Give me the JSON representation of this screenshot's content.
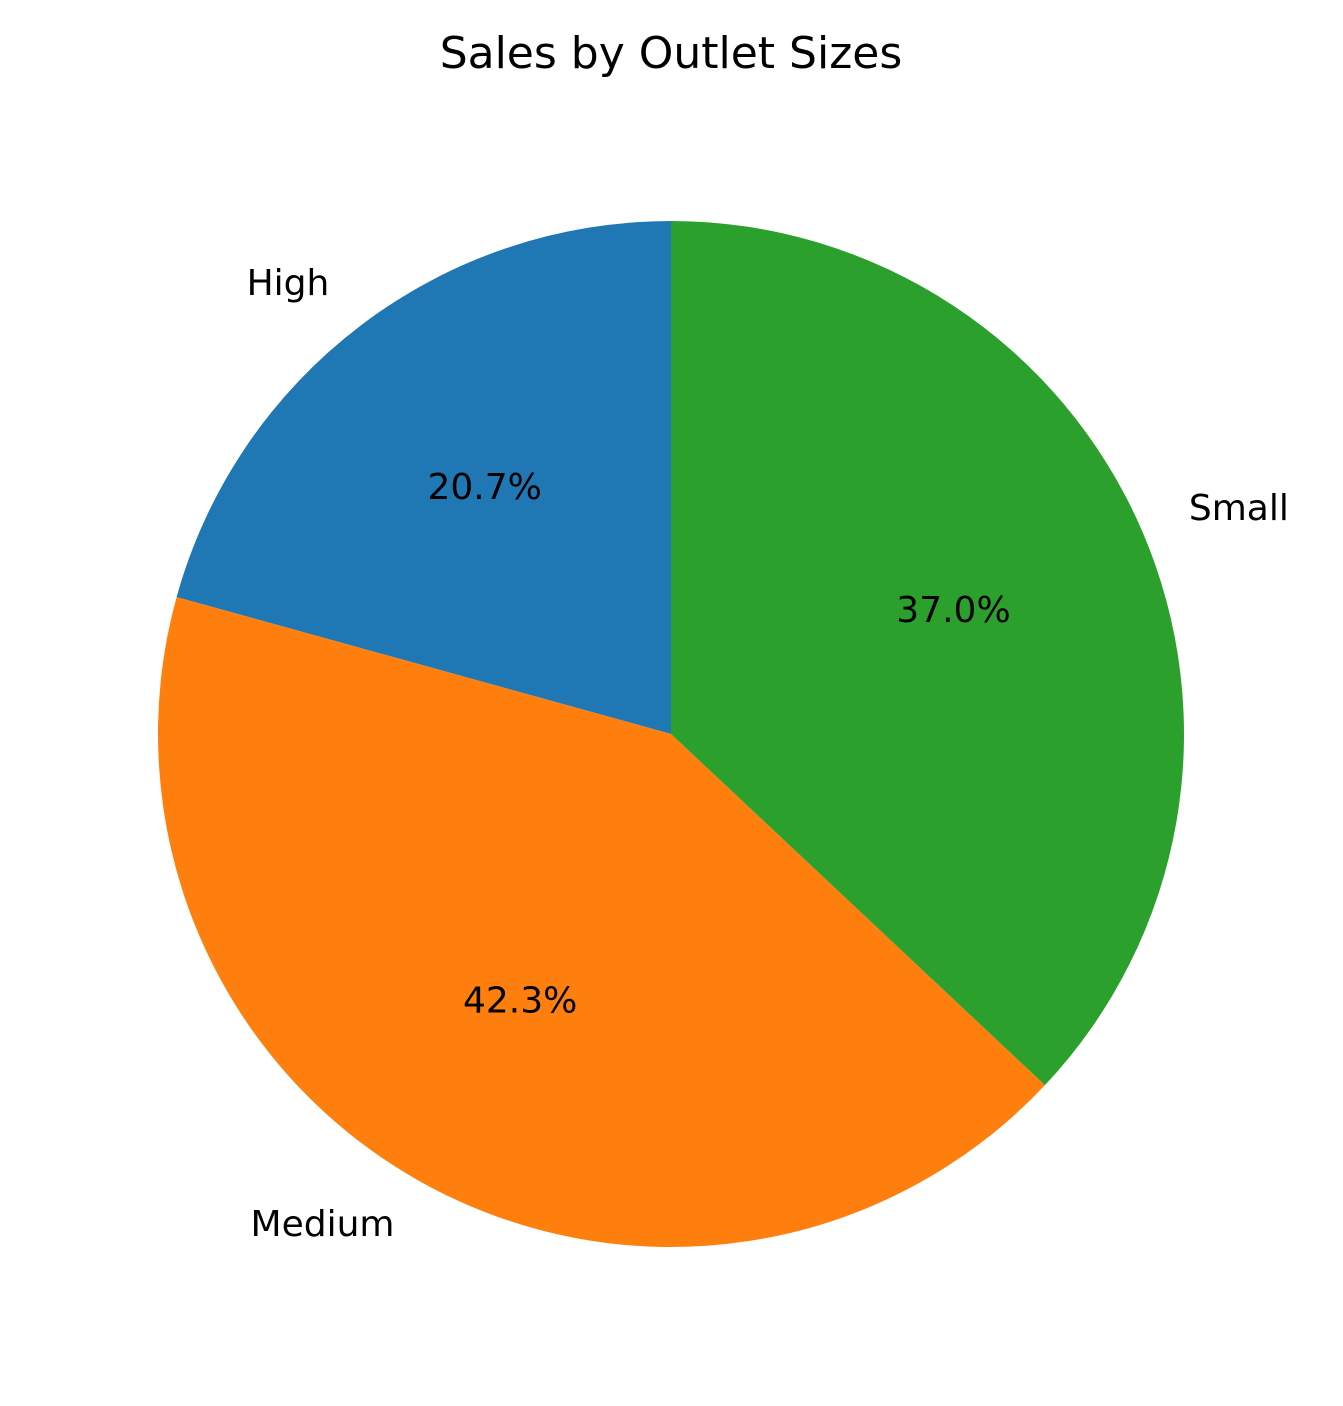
{
  "chart_data": {
    "type": "pie",
    "title": "Sales by Outlet Sizes",
    "start_angle_deg": 90,
    "direction": "counterclockwise",
    "slices": [
      {
        "label": "High",
        "value": 20.7,
        "pct_label": "20.7%",
        "color": "#1f77b4"
      },
      {
        "label": "Medium",
        "value": 42.3,
        "pct_label": "42.3%",
        "color": "#ff7f0e"
      },
      {
        "label": "Small",
        "value": 37.0,
        "pct_label": "37.0%",
        "color": "#2ca02c"
      }
    ],
    "legend": "none"
  }
}
